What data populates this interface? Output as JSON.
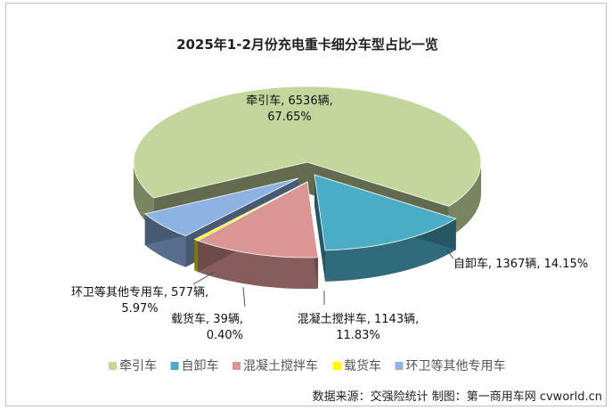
{
  "chart_data": {
    "type": "pie",
    "title": "2025年1-2月份充电重卡细分车型占比一览",
    "unit": "辆",
    "categories": [
      "牵引车",
      "自卸车",
      "混凝土搅拌车",
      "载货车",
      "环卫等其他专用车"
    ],
    "values": [
      6536,
      1367,
      1143,
      39,
      577
    ],
    "percent_labels": [
      "67.65%",
      "14.15%",
      "11.83%",
      "0.40%",
      "5.97%"
    ],
    "colors": [
      "#c3d69b",
      "#4bacc6",
      "#d99694",
      "#ffff00",
      "#8db3e2"
    ],
    "legend": [
      "牵引车",
      "自卸车",
      "混凝土搅拌车",
      "载货车",
      "环卫等其他专用车"
    ],
    "legend_position": "bottom",
    "source": "数据来源：交强险统计  制图：第一商用车网 cvworld.cn"
  }
}
